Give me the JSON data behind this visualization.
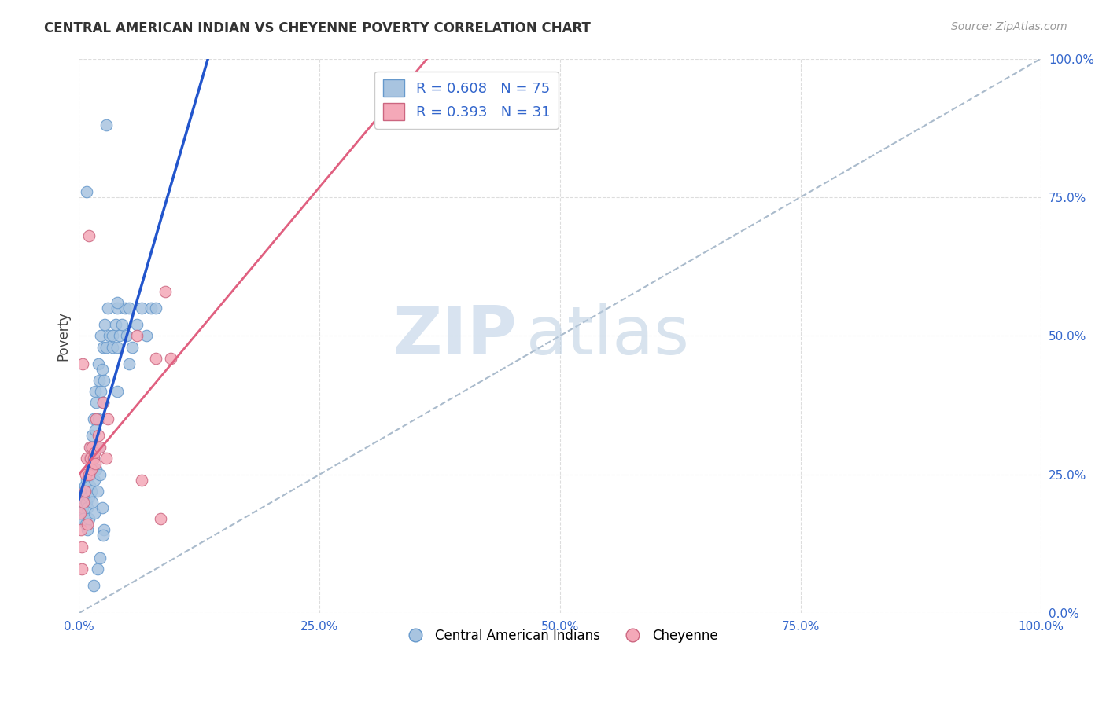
{
  "title": "CENTRAL AMERICAN INDIAN VS CHEYENNE POVERTY CORRELATION CHART",
  "source": "Source: ZipAtlas.com",
  "ylabel": "Poverty",
  "legend_bottom": [
    "Central American Indians",
    "Cheyenne"
  ],
  "r_blue": 0.608,
  "n_blue": 75,
  "r_pink": 0.393,
  "n_pink": 31,
  "blue_scatter": [
    [
      0.001,
      0.2
    ],
    [
      0.002,
      0.22
    ],
    [
      0.003,
      0.18
    ],
    [
      0.004,
      0.19
    ],
    [
      0.005,
      0.21
    ],
    [
      0.005,
      0.17
    ],
    [
      0.006,
      0.23
    ],
    [
      0.007,
      0.16
    ],
    [
      0.007,
      0.22
    ],
    [
      0.008,
      0.2
    ],
    [
      0.008,
      0.24
    ],
    [
      0.009,
      0.19
    ],
    [
      0.009,
      0.15
    ],
    [
      0.01,
      0.25
    ],
    [
      0.01,
      0.21
    ],
    [
      0.01,
      0.17
    ],
    [
      0.011,
      0.28
    ],
    [
      0.011,
      0.23
    ],
    [
      0.012,
      0.3
    ],
    [
      0.012,
      0.25
    ],
    [
      0.013,
      0.22
    ],
    [
      0.013,
      0.27
    ],
    [
      0.014,
      0.32
    ],
    [
      0.014,
      0.2
    ],
    [
      0.015,
      0.35
    ],
    [
      0.015,
      0.28
    ],
    [
      0.016,
      0.24
    ],
    [
      0.016,
      0.18
    ],
    [
      0.017,
      0.4
    ],
    [
      0.017,
      0.33
    ],
    [
      0.018,
      0.38
    ],
    [
      0.018,
      0.26
    ],
    [
      0.019,
      0.22
    ],
    [
      0.019,
      0.08
    ],
    [
      0.02,
      0.45
    ],
    [
      0.02,
      0.35
    ],
    [
      0.021,
      0.42
    ],
    [
      0.021,
      0.3
    ],
    [
      0.022,
      0.25
    ],
    [
      0.022,
      0.1
    ],
    [
      0.023,
      0.5
    ],
    [
      0.023,
      0.4
    ],
    [
      0.024,
      0.44
    ],
    [
      0.024,
      0.19
    ],
    [
      0.025,
      0.48
    ],
    [
      0.025,
      0.38
    ],
    [
      0.026,
      0.42
    ],
    [
      0.026,
      0.15
    ],
    [
      0.027,
      0.52
    ],
    [
      0.028,
      0.48
    ],
    [
      0.03,
      0.55
    ],
    [
      0.032,
      0.5
    ],
    [
      0.035,
      0.5
    ],
    [
      0.035,
      0.48
    ],
    [
      0.038,
      0.52
    ],
    [
      0.04,
      0.55
    ],
    [
      0.04,
      0.48
    ],
    [
      0.04,
      0.4
    ],
    [
      0.042,
      0.5
    ],
    [
      0.045,
      0.52
    ],
    [
      0.048,
      0.55
    ],
    [
      0.05,
      0.5
    ],
    [
      0.052,
      0.55
    ],
    [
      0.055,
      0.48
    ],
    [
      0.06,
      0.52
    ],
    [
      0.065,
      0.55
    ],
    [
      0.07,
      0.5
    ],
    [
      0.075,
      0.55
    ],
    [
      0.08,
      0.55
    ],
    [
      0.04,
      0.56
    ],
    [
      0.008,
      0.76
    ],
    [
      0.028,
      0.88
    ],
    [
      0.052,
      0.45
    ],
    [
      0.015,
      0.05
    ],
    [
      0.025,
      0.14
    ]
  ],
  "pink_scatter": [
    [
      0.001,
      0.18
    ],
    [
      0.002,
      0.15
    ],
    [
      0.003,
      0.12
    ],
    [
      0.004,
      0.45
    ],
    [
      0.005,
      0.2
    ],
    [
      0.006,
      0.22
    ],
    [
      0.007,
      0.25
    ],
    [
      0.008,
      0.28
    ],
    [
      0.009,
      0.16
    ],
    [
      0.01,
      0.25
    ],
    [
      0.01,
      0.68
    ],
    [
      0.011,
      0.3
    ],
    [
      0.012,
      0.28
    ],
    [
      0.013,
      0.26
    ],
    [
      0.014,
      0.3
    ],
    [
      0.015,
      0.28
    ],
    [
      0.016,
      0.29
    ],
    [
      0.017,
      0.27
    ],
    [
      0.018,
      0.35
    ],
    [
      0.02,
      0.32
    ],
    [
      0.022,
      0.3
    ],
    [
      0.025,
      0.38
    ],
    [
      0.028,
      0.28
    ],
    [
      0.03,
      0.35
    ],
    [
      0.06,
      0.5
    ],
    [
      0.065,
      0.24
    ],
    [
      0.08,
      0.46
    ],
    [
      0.085,
      0.17
    ],
    [
      0.09,
      0.58
    ],
    [
      0.095,
      0.46
    ],
    [
      0.003,
      0.08
    ]
  ],
  "blue_line_color": "#2255cc",
  "pink_line_color": "#e06080",
  "diagonal_color": "#aabbcc",
  "scatter_blue_color": "#a8c4e0",
  "scatter_blue_edge": "#6699cc",
  "scatter_pink_color": "#f4a8b8",
  "scatter_pink_edge": "#cc6680",
  "watermark_zip": "ZIP",
  "watermark_atlas": "atlas",
  "bg_color": "#ffffff",
  "grid_color": "#dddddd",
  "xmin": 0.0,
  "xmax": 1.0,
  "ymin": 0.0,
  "ymax": 1.0,
  "xticks": [
    0.0,
    0.25,
    0.5,
    0.75,
    1.0
  ],
  "yticks": [
    0.0,
    0.25,
    0.5,
    0.75,
    1.0
  ],
  "tick_labels_pct": [
    "0.0%",
    "25.0%",
    "50.0%",
    "75.0%",
    "100.0%"
  ]
}
